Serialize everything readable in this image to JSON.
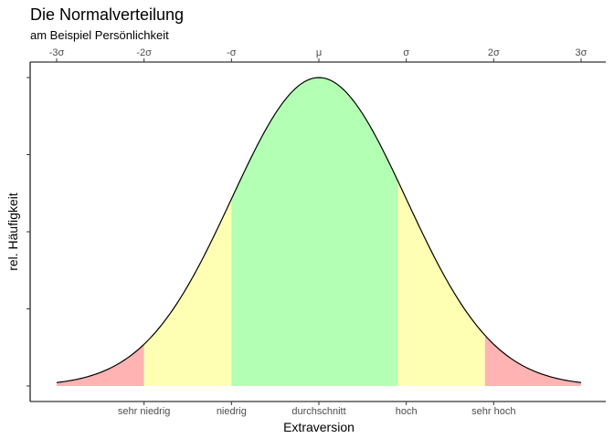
{
  "chart_data": {
    "type": "area",
    "title": "Die Normalverteilung",
    "subtitle": "am Beispiel Persönlichkeit",
    "xlabel": "Extraversion",
    "ylabel": "rel. Häufigkeit",
    "xlim": [
      -3,
      3
    ],
    "ylim": [
      0,
      0.4
    ],
    "grid": false,
    "top_axis_ticks": [
      {
        "x": -3,
        "label": "-3σ"
      },
      {
        "x": -2,
        "label": "-2σ"
      },
      {
        "x": -1,
        "label": "-σ"
      },
      {
        "x": 0,
        "label": "μ"
      },
      {
        "x": 1,
        "label": "σ"
      },
      {
        "x": 2,
        "label": "2σ"
      },
      {
        "x": 3,
        "label": "3σ"
      }
    ],
    "bottom_axis_ticks": [
      {
        "x": -2,
        "label": "sehr niedrig"
      },
      {
        "x": -1,
        "label": "niedrig"
      },
      {
        "x": 0,
        "label": "durchschnitt"
      },
      {
        "x": 1,
        "label": "hoch"
      },
      {
        "x": 2,
        "label": "sehr hoch"
      }
    ],
    "y_ticks": [
      0,
      0.1,
      0.2,
      0.3,
      0.4
    ],
    "regions": [
      {
        "from": -3,
        "to": -2,
        "color": "#ffb3b3"
      },
      {
        "from": -2,
        "to": -1,
        "color": "#ffffb3"
      },
      {
        "from": -1,
        "to": 0.9,
        "color": "#b3ffb3"
      },
      {
        "from": 0.9,
        "to": 1.9,
        "color": "#ffffb3"
      },
      {
        "from": 1.9,
        "to": 3,
        "color": "#ffb3b3"
      }
    ],
    "curve": {
      "mean": 0,
      "sd": 1,
      "color": "#000000"
    }
  }
}
